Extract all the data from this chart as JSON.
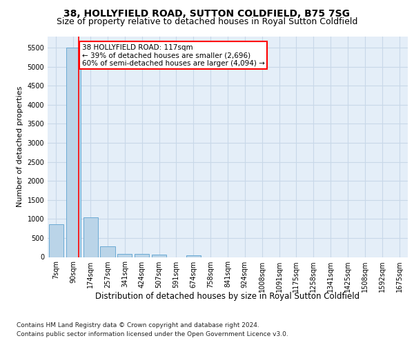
{
  "title": "38, HOLLYFIELD ROAD, SUTTON COLDFIELD, B75 7SG",
  "subtitle": "Size of property relative to detached houses in Royal Sutton Coldfield",
  "xlabel": "Distribution of detached houses by size in Royal Sutton Coldfield",
  "ylabel": "Number of detached properties",
  "footnote1": "Contains HM Land Registry data © Crown copyright and database right 2024.",
  "footnote2": "Contains public sector information licensed under the Open Government Licence v3.0.",
  "bin_labels": [
    "7sqm",
    "90sqm",
    "174sqm",
    "257sqm",
    "341sqm",
    "424sqm",
    "507sqm",
    "591sqm",
    "674sqm",
    "758sqm",
    "841sqm",
    "924sqm",
    "1008sqm",
    "1091sqm",
    "1175sqm",
    "1258sqm",
    "1341sqm",
    "1425sqm",
    "1508sqm",
    "1592sqm",
    "1675sqm"
  ],
  "bar_values": [
    870,
    5500,
    1050,
    275,
    90,
    75,
    60,
    0,
    50,
    0,
    0,
    0,
    0,
    0,
    0,
    0,
    0,
    0,
    0,
    0,
    0
  ],
  "bar_color": "#bad4e8",
  "bar_edgecolor": "#6aaad4",
  "annotation_text": "38 HOLLYFIELD ROAD: 117sqm\n← 39% of detached houses are smaller (2,696)\n60% of semi-detached houses are larger (4,094) →",
  "annotation_box_color": "white",
  "annotation_box_edgecolor": "red",
  "ylim": [
    0,
    5800
  ],
  "yticks": [
    0,
    500,
    1000,
    1500,
    2000,
    2500,
    3000,
    3500,
    4000,
    4500,
    5000,
    5500
  ],
  "title_fontsize": 10,
  "subtitle_fontsize": 9,
  "tick_fontsize": 7,
  "ylabel_fontsize": 8,
  "xlabel_fontsize": 8.5,
  "annotation_fontsize": 7.5,
  "footnote_fontsize": 6.5,
  "background_color": "#ffffff",
  "grid_color": "#c8d8e8",
  "axes_bg_color": "#e4eef8",
  "red_line_x": 1.32
}
